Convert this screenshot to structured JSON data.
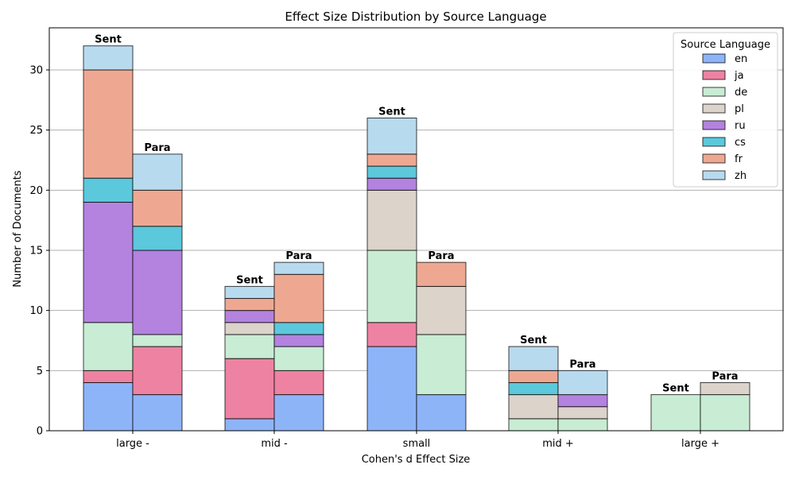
{
  "chart_data": {
    "type": "bar",
    "title": "Effect Size Distribution by Source Language",
    "xlabel": "Cohen's d Effect Size",
    "ylabel": "Number of Documents",
    "categories": [
      "large -",
      "mid -",
      "small",
      "mid +",
      "large +"
    ],
    "groups": [
      "Sent",
      "Para"
    ],
    "ylim": [
      0,
      33.5
    ],
    "yticks": [
      0,
      5,
      10,
      15,
      20,
      25,
      30
    ],
    "grid": "horizontal",
    "legend": {
      "title": "Source Language",
      "position": "top-right"
    },
    "series": [
      {
        "name": "en",
        "color": "#8eb4f8",
        "sent": [
          4,
          1,
          7,
          0,
          0
        ],
        "para": [
          3,
          3,
          3,
          0,
          0
        ]
      },
      {
        "name": "ja",
        "color": "#ee82a2",
        "sent": [
          1,
          5,
          2,
          0,
          0
        ],
        "para": [
          4,
          2,
          0,
          0,
          0
        ]
      },
      {
        "name": "de",
        "color": "#c8ecd4",
        "sent": [
          4,
          2,
          6,
          1,
          3
        ],
        "para": [
          1,
          2,
          5,
          1,
          3
        ]
      },
      {
        "name": "pl",
        "color": "#dcd3cb",
        "sent": [
          0,
          1,
          5,
          2,
          0
        ],
        "para": [
          0,
          0,
          4,
          1,
          1
        ]
      },
      {
        "name": "ru",
        "color": "#b482df",
        "sent": [
          10,
          1,
          1,
          0,
          0
        ],
        "para": [
          7,
          1,
          0,
          1,
          0
        ]
      },
      {
        "name": "cs",
        "color": "#5bc8dc",
        "sent": [
          2,
          0,
          1,
          1,
          0
        ],
        "para": [
          2,
          1,
          0,
          0,
          0
        ]
      },
      {
        "name": "fr",
        "color": "#eea892",
        "sent": [
          9,
          1,
          1,
          1,
          0
        ],
        "para": [
          3,
          4,
          2,
          0,
          0
        ]
      },
      {
        "name": "zh",
        "color": "#b8daee",
        "sent": [
          2,
          1,
          3,
          2,
          0
        ],
        "para": [
          3,
          1,
          0,
          2,
          0
        ]
      }
    ]
  }
}
